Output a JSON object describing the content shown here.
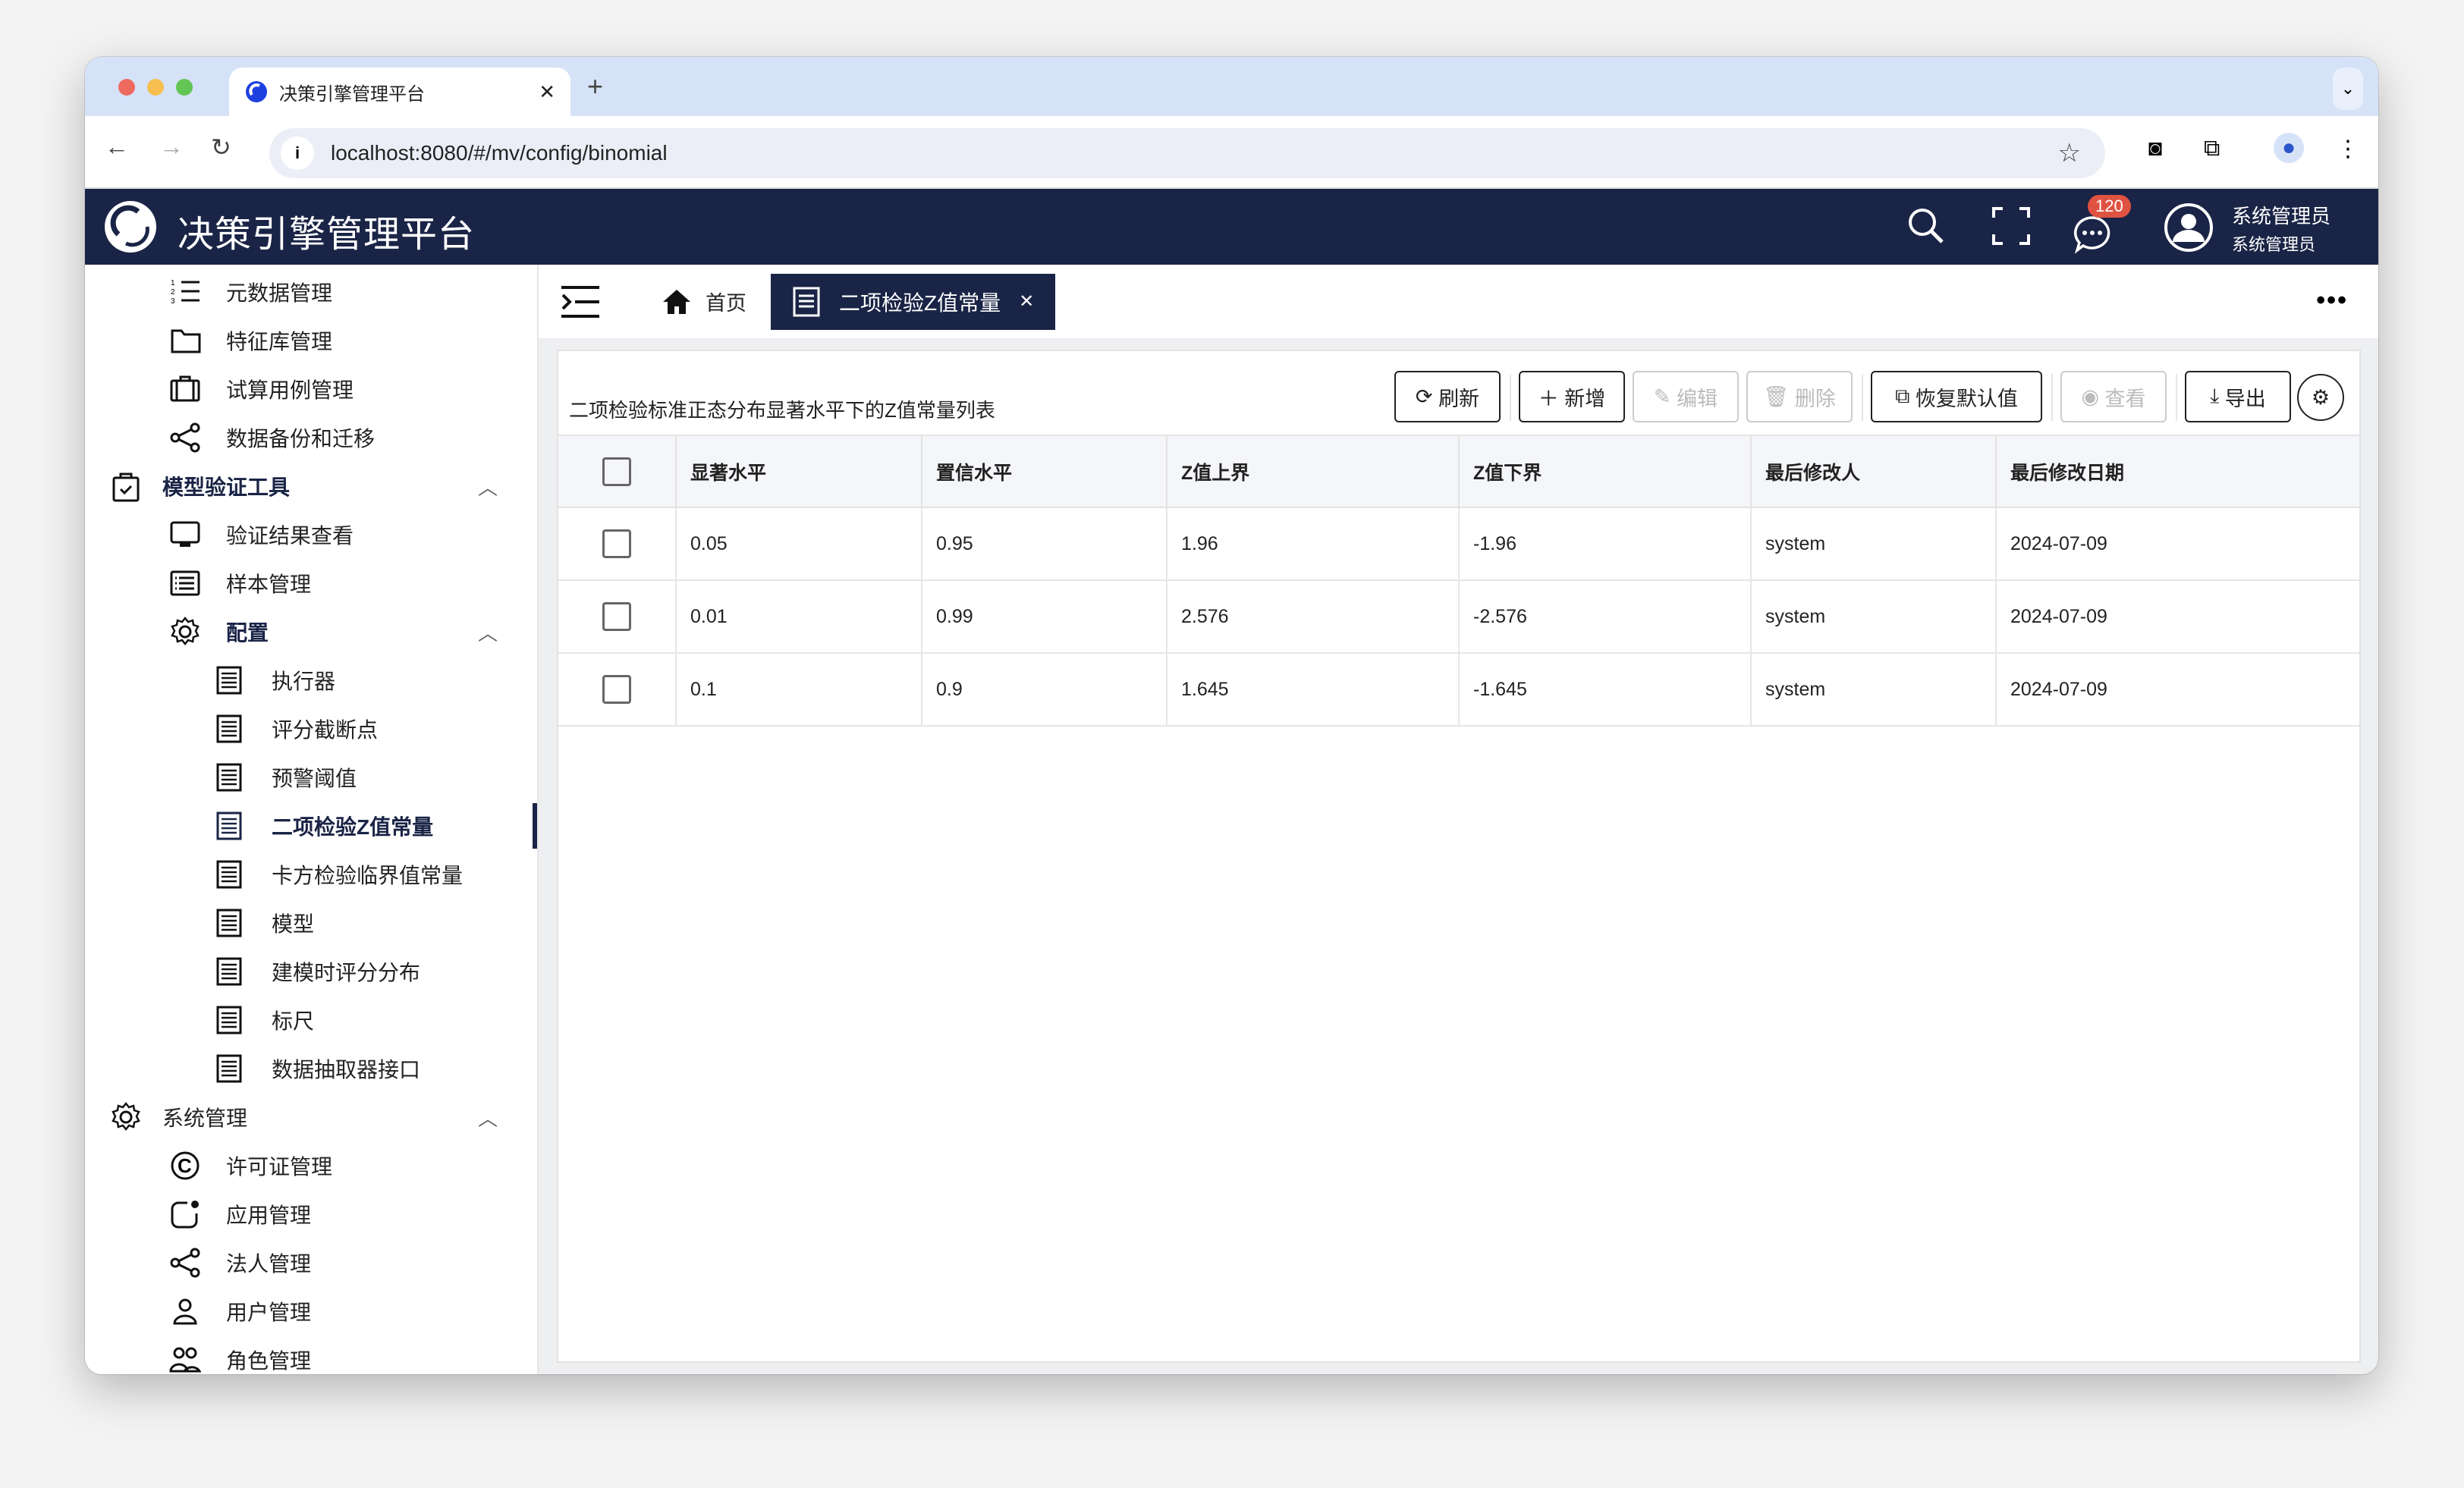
{
  "browser": {
    "tab_title": "决策引擎管理平台",
    "url": "localhost:8080/#/mv/config/binomial"
  },
  "app": {
    "title": "决策引擎管理平台",
    "notification_count": "120",
    "user_name": "系统管理员",
    "user_role": "系统管理员",
    "brand_color": "#1a2446"
  },
  "sidebar": {
    "items": [
      {
        "label": "元数据管理",
        "level": 2,
        "icon": "ordered-list-icon"
      },
      {
        "label": "特征库管理",
        "level": 2,
        "icon": "folder-icon"
      },
      {
        "label": "试算用例管理",
        "level": 2,
        "icon": "briefcase-icon"
      },
      {
        "label": "数据备份和迁移",
        "level": 2,
        "icon": "share-icon"
      },
      {
        "label": "模型验证工具",
        "level": 1,
        "icon": "clipboard-check-icon",
        "expanded": true
      },
      {
        "label": "验证结果查看",
        "level": 2,
        "icon": "monitor-icon"
      },
      {
        "label": "样本管理",
        "level": 2,
        "icon": "list-box-icon"
      },
      {
        "label": "配置",
        "level": 2,
        "icon": "gear-icon",
        "expanded": true
      },
      {
        "label": "执行器",
        "level": 3,
        "icon": "receipt-icon"
      },
      {
        "label": "评分截断点",
        "level": 3,
        "icon": "receipt-icon"
      },
      {
        "label": "预警阈值",
        "level": 3,
        "icon": "receipt-icon"
      },
      {
        "label": "二项检验Z值常量",
        "level": 3,
        "icon": "receipt-icon",
        "active": true
      },
      {
        "label": "卡方检验临界值常量",
        "level": 3,
        "icon": "receipt-icon"
      },
      {
        "label": "模型",
        "level": 3,
        "icon": "receipt-icon"
      },
      {
        "label": "建模时评分分布",
        "level": 3,
        "icon": "receipt-icon"
      },
      {
        "label": "标尺",
        "level": 3,
        "icon": "receipt-icon"
      },
      {
        "label": "数据抽取器接口",
        "level": 3,
        "icon": "receipt-icon"
      },
      {
        "label": "系统管理",
        "level": 1,
        "icon": "gear-icon",
        "expanded": true
      },
      {
        "label": "许可证管理",
        "level": 2,
        "icon": "copyright-icon"
      },
      {
        "label": "应用管理",
        "level": 2,
        "icon": "app-badge-icon"
      },
      {
        "label": "法人管理",
        "level": 2,
        "icon": "share-icon"
      },
      {
        "label": "用户管理",
        "level": 2,
        "icon": "user-icon"
      },
      {
        "label": "角色管理",
        "level": 2,
        "icon": "users-icon"
      }
    ]
  },
  "tabs": {
    "home": "首页",
    "current": "二项检验Z值常量"
  },
  "content": {
    "title": "二项检验标准正态分布显著水平下的Z值常量列表",
    "toolbar": {
      "refresh": "刷新",
      "add": "新增",
      "edit": "编辑",
      "delete": "删除",
      "restore": "恢复默认值",
      "view": "查看",
      "export": "导出"
    },
    "columns": [
      "显著水平",
      "置信水平",
      "Z值上界",
      "Z值下界",
      "最后修改人",
      "最后修改日期"
    ],
    "rows": [
      [
        "0.05",
        "0.95",
        "1.96",
        "-1.96",
        "system",
        "2024-07-09"
      ],
      [
        "0.01",
        "0.99",
        "2.576",
        "-2.576",
        "system",
        "2024-07-09"
      ],
      [
        "0.1",
        "0.9",
        "1.645",
        "-1.645",
        "system",
        "2024-07-09"
      ]
    ]
  }
}
